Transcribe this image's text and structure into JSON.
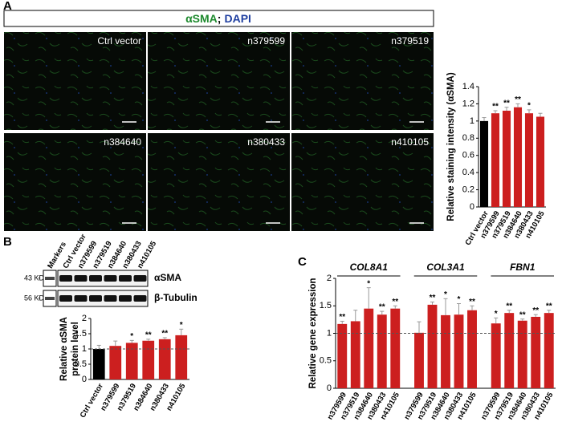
{
  "figure": {
    "panel_labels": [
      "A",
      "B",
      "C"
    ],
    "header_parts": [
      "αSMA",
      ";",
      "DAPI"
    ],
    "header_colors": [
      "#1e8a2e",
      "#000000",
      "#1f3fa0"
    ],
    "images": [
      "Ctrl vector",
      "n379599",
      "n379519",
      "n384640",
      "n380433",
      "n410105"
    ],
    "blot": {
      "lanes": [
        "Markers",
        "Ctrl vector",
        "n379599",
        "n379519",
        "n384640",
        "n380433",
        "n410105"
      ],
      "markers": [
        "43 KD",
        "56 KD"
      ],
      "proteins": [
        "αSMA",
        "β-Tubulin"
      ]
    }
  },
  "chart_data": [
    {
      "type": "bar",
      "ylabel": "Relative staining intensity (αSMA)",
      "categories": [
        "Ctrl vector",
        "n379599",
        "n379519",
        "n384640",
        "n380433",
        "n410105"
      ],
      "values": [
        1.0,
        1.09,
        1.12,
        1.16,
        1.09,
        1.05
      ],
      "errors": [
        0.04,
        0.03,
        0.04,
        0.04,
        0.04,
        0.04
      ],
      "annotations": [
        null,
        "**",
        "**",
        "**",
        "*",
        null
      ],
      "colors": [
        "#000000",
        "#cc1f1f",
        "#cc1f1f",
        "#cc1f1f",
        "#cc1f1f",
        "#cc1f1f"
      ],
      "ylim": [
        0,
        1.4
      ],
      "yticks": [
        0,
        0.2,
        0.4,
        0.6,
        0.8,
        1,
        1.2,
        1.4
      ]
    },
    {
      "type": "bar",
      "ylabel": [
        "Relative αSMA",
        "protein level"
      ],
      "categories": [
        "Ctrl vector",
        "n379599",
        "n379519",
        "n384640",
        "n380433",
        "n410105"
      ],
      "values": [
        1.0,
        1.1,
        1.2,
        1.27,
        1.32,
        1.45
      ],
      "errors": [
        0.12,
        0.16,
        0.08,
        0.05,
        0.05,
        0.2
      ],
      "annotations": [
        null,
        null,
        "*",
        "**",
        "**",
        "*"
      ],
      "colors": [
        "#000000",
        "#cc1f1f",
        "#cc1f1f",
        "#cc1f1f",
        "#cc1f1f",
        "#cc1f1f"
      ],
      "ylim": [
        0,
        2
      ],
      "yticks": [
        0,
        0.5,
        1,
        1.5,
        2
      ],
      "reference_line": 1
    },
    {
      "type": "grouped_bar",
      "ylabel": "Relative gene expression",
      "color": "#cc1f1f",
      "groups": [
        {
          "name": "COL8A1",
          "categories": [
            "n379599",
            "n379519",
            "n384640",
            "n380433",
            "n410105"
          ],
          "values": [
            1.17,
            1.22,
            1.45,
            1.34,
            1.45
          ],
          "errors": [
            0.05,
            0.2,
            0.38,
            0.06,
            0.05
          ],
          "annotations": [
            "**",
            null,
            "*",
            "**",
            "**"
          ]
        },
        {
          "name": "COL3A1",
          "categories": [
            "n379599",
            "n379519",
            "n384640",
            "n380433",
            "n410105"
          ],
          "values": [
            1.01,
            1.52,
            1.33,
            1.34,
            1.42
          ],
          "errors": [
            0.2,
            0.05,
            0.3,
            0.2,
            0.08
          ],
          "annotations": [
            null,
            "**",
            "*",
            "*",
            "**"
          ]
        },
        {
          "name": "FBN1",
          "categories": [
            "n379599",
            "n379519",
            "n384640",
            "n380433",
            "n410105"
          ],
          "values": [
            1.18,
            1.37,
            1.23,
            1.3,
            1.37
          ],
          "errors": [
            0.1,
            0.05,
            0.03,
            0.04,
            0.05
          ],
          "annotations": [
            "*",
            "**",
            "**",
            "**",
            "**"
          ]
        }
      ],
      "ylim": [
        0,
        2
      ],
      "yticks": [
        0,
        0.5,
        1,
        1.5,
        2
      ],
      "reference_line": 1
    }
  ]
}
